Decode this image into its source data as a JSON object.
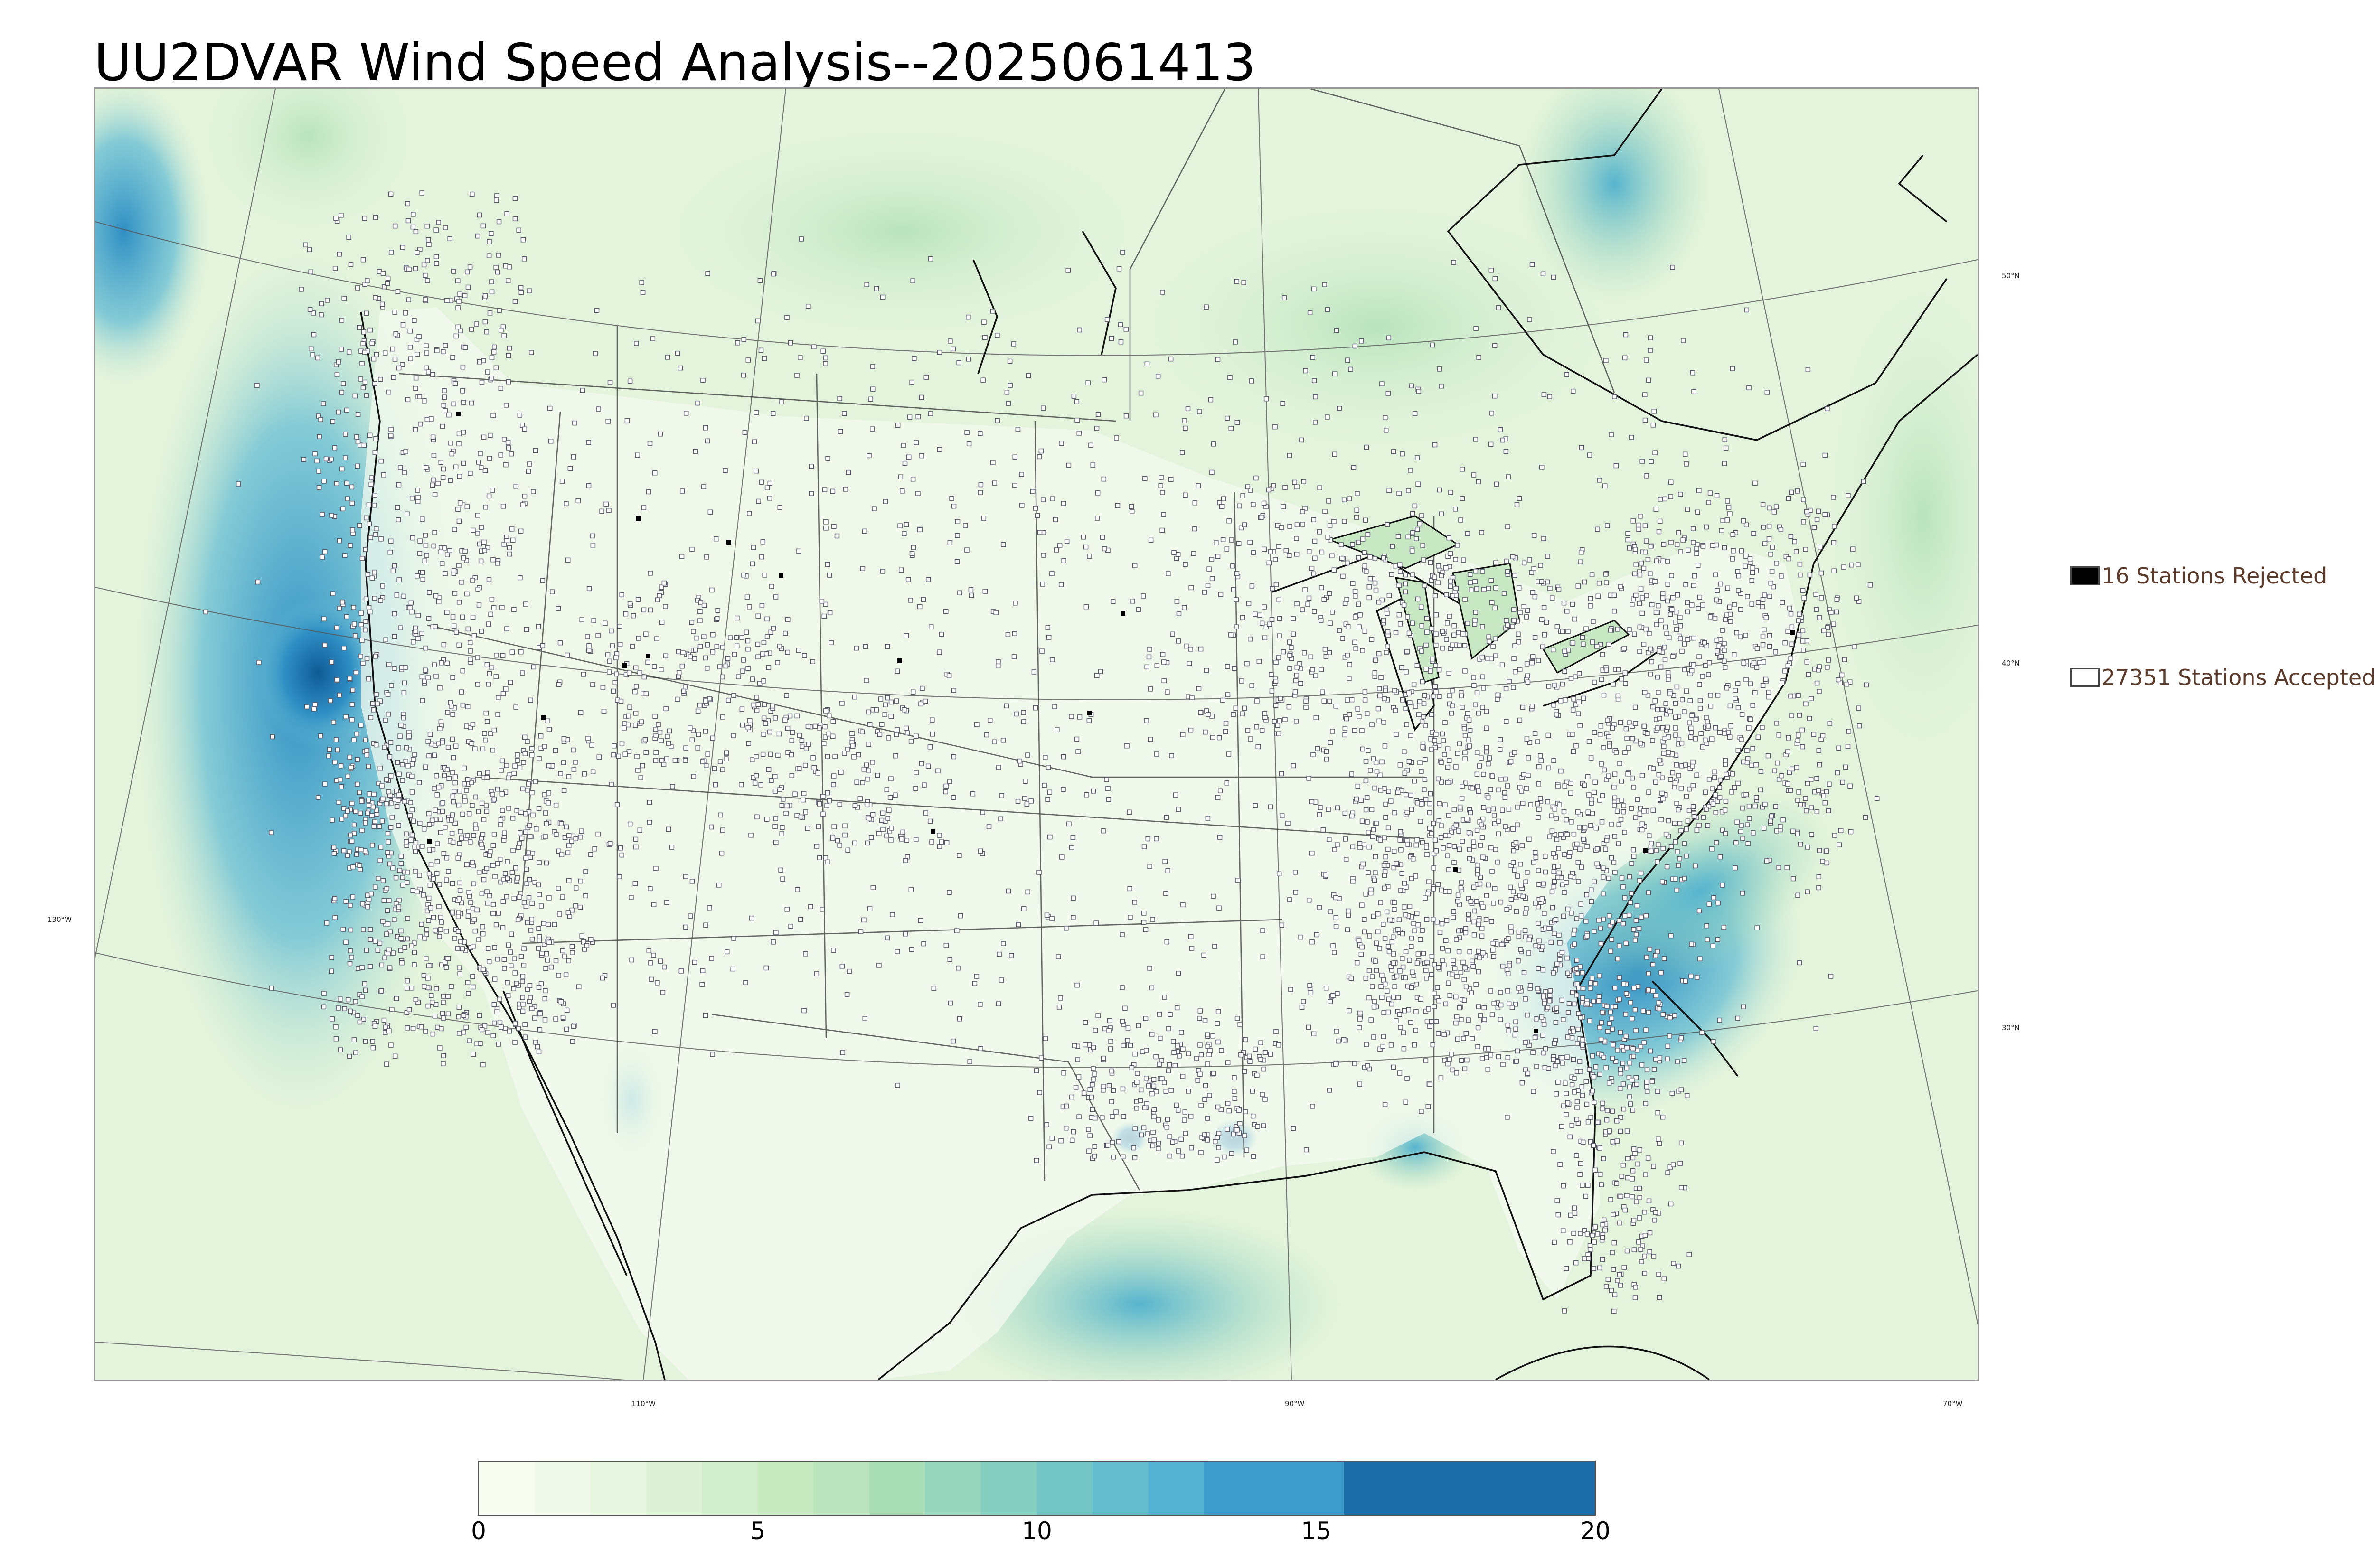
{
  "title": "UU2DVAR Wind Speed Analysis--2025061413",
  "map": {
    "lat_labels": [
      "50°N",
      "40°N",
      "30°N"
    ],
    "lon_labels": [
      "130°W",
      "110°W",
      "90°W",
      "70°W"
    ]
  },
  "legend": {
    "rejected": {
      "label": "16 Stations Rejected",
      "color": "#000000"
    },
    "accepted": {
      "label": "27351 Stations Accepted",
      "color": "#ffffff"
    }
  },
  "colorbar": {
    "ticks": [
      "0",
      "5",
      "10",
      "15",
      "20"
    ],
    "range": [
      0,
      20
    ],
    "levels": [
      {
        "from": 0,
        "to": 1,
        "color": "#f7fcf0"
      },
      {
        "from": 1,
        "to": 2,
        "color": "#f0f9ea"
      },
      {
        "from": 2,
        "to": 3,
        "color": "#e6f5e0"
      },
      {
        "from": 3,
        "to": 4,
        "color": "#dcf1d6"
      },
      {
        "from": 4,
        "to": 5,
        "color": "#d2edcb"
      },
      {
        "from": 5,
        "to": 6,
        "color": "#c6e9c0"
      },
      {
        "from": 6,
        "to": 7,
        "color": "#b8e3bc"
      },
      {
        "from": 7,
        "to": 8,
        "color": "#a8ddb5"
      },
      {
        "from": 8,
        "to": 9,
        "color": "#95d5bb"
      },
      {
        "from": 9,
        "to": 10,
        "color": "#84cec0"
      },
      {
        "from": 10,
        "to": 11,
        "color": "#74c6c6"
      },
      {
        "from": 11,
        "to": 12,
        "color": "#62bccd"
      },
      {
        "from": 12,
        "to": 13,
        "color": "#54b3d3"
      },
      {
        "from": 13,
        "to": 15.5,
        "color": "#3d9ccb"
      },
      {
        "from": 15.5,
        "to": 20,
        "color": "#1b6da8"
      }
    ]
  }
}
